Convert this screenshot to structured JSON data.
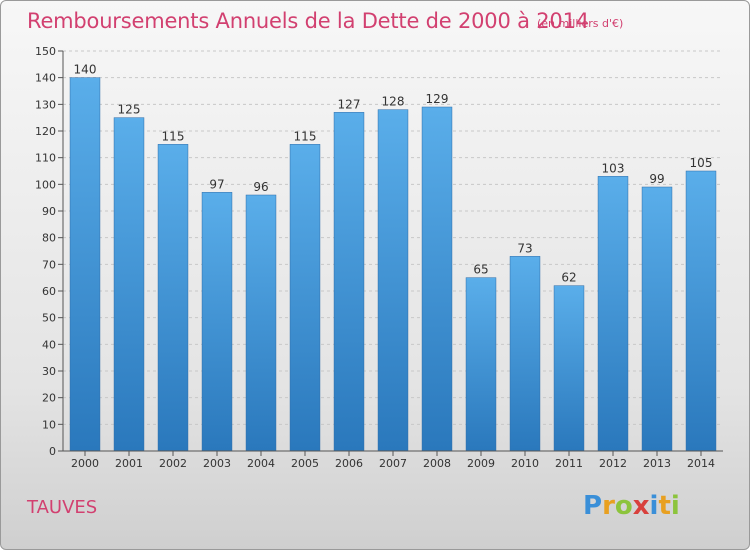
{
  "header": {
    "title": "Remboursements Annuels de la Dette de 2000 à 2014",
    "unit": "(en milliers d'€)"
  },
  "footer": {
    "town": "TAUVES",
    "logo": {
      "letters": [
        "P",
        "r",
        "o",
        "x",
        "i",
        "t",
        "i"
      ],
      "colors": [
        "#3a8fd8",
        "#e8a020",
        "#8cc43c",
        "#d8403c",
        "#3a8fd8",
        "#e8a020",
        "#8cc43c"
      ]
    }
  },
  "chart_data": {
    "type": "bar",
    "title": "Remboursements Annuels de la Dette de 2000 à 2014",
    "xlabel": "",
    "ylabel": "",
    "categories": [
      "2000",
      "2001",
      "2002",
      "2003",
      "2004",
      "2005",
      "2006",
      "2007",
      "2008",
      "2009",
      "2010",
      "2011",
      "2012",
      "2013",
      "2014"
    ],
    "values": [
      140,
      125,
      115,
      97,
      96,
      115,
      127,
      128,
      129,
      65,
      73,
      62,
      103,
      99,
      105
    ],
    "ylim": [
      0,
      150
    ],
    "yticks": [
      0,
      10,
      20,
      30,
      40,
      50,
      60,
      70,
      80,
      90,
      100,
      110,
      120,
      130,
      140,
      150
    ],
    "grid": true,
    "bar_color_top": "#5aaeea",
    "bar_color_bottom": "#2a78bc"
  }
}
